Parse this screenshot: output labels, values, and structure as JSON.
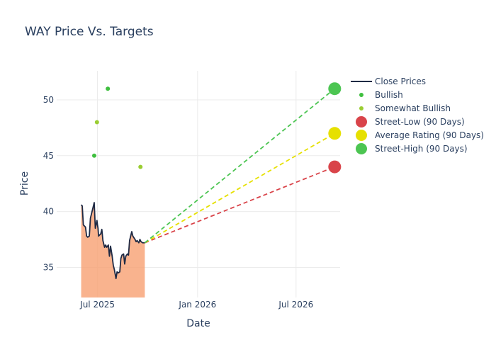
{
  "chart_data": {
    "type": "line",
    "title": "WAY Price Vs. Targets",
    "xlabel": "Date",
    "ylabel": "Price",
    "x_ticks": [
      "Jul 2025",
      "Jan 2026",
      "Jul 2026"
    ],
    "y_ticks": [
      35,
      40,
      45,
      50
    ],
    "ylim": [
      32.3,
      52.6
    ],
    "xlim": [
      "2025-04-17",
      "2026-09-20"
    ],
    "grid": true,
    "legend_position": "top-right",
    "colors": {
      "close": "#1f2a44",
      "area": "#f7a072",
      "bullish": "#3fbf3f",
      "somewhat_bullish": "#9acd32",
      "street_low": "#d9444a",
      "average": "#e6e000",
      "street_high": "#4cc552",
      "grid": "#ebebeb",
      "text": "#2a3f5f"
    },
    "series": [
      {
        "name": "Close Prices",
        "x": [
          "2025-06-01",
          "2025-06-03",
          "2025-06-05",
          "2025-06-09",
          "2025-06-11",
          "2025-06-13",
          "2025-06-16",
          "2025-06-18",
          "2025-06-20",
          "2025-06-23",
          "2025-06-25",
          "2025-06-27",
          "2025-06-30",
          "2025-07-01",
          "2025-07-02",
          "2025-07-03",
          "2025-07-07",
          "2025-07-09",
          "2025-07-11",
          "2025-07-14",
          "2025-07-16",
          "2025-07-18",
          "2025-07-21",
          "2025-07-23",
          "2025-07-25",
          "2025-07-28",
          "2025-07-30",
          "2025-08-01",
          "2025-08-04",
          "2025-08-06",
          "2025-08-08",
          "2025-08-11",
          "2025-08-13",
          "2025-08-15",
          "2025-08-18",
          "2025-08-20",
          "2025-08-22",
          "2025-08-25",
          "2025-08-27",
          "2025-08-29",
          "2025-09-02",
          "2025-09-04",
          "2025-09-08",
          "2025-09-10",
          "2025-09-12",
          "2025-09-15",
          "2025-09-17",
          "2025-09-19",
          "2025-09-22",
          "2025-09-24",
          "2025-09-26"
        ],
        "y": [
          40.6,
          40.5,
          38.8,
          38.6,
          37.8,
          37.7,
          37.8,
          39.4,
          39.8,
          40.4,
          40.8,
          38.5,
          39.2,
          38.8,
          38.5,
          37.8,
          38.0,
          38.4,
          37.4,
          36.8,
          37.0,
          36.8,
          37.0,
          36.0,
          36.9,
          36.0,
          35.2,
          34.8,
          34.0,
          34.6,
          34.5,
          34.6,
          35.8,
          36.1,
          36.2,
          35.3,
          36.0,
          36.2,
          36.1,
          37.4,
          38.2,
          37.8,
          37.5,
          37.3,
          37.4,
          37.2,
          37.5,
          37.3,
          37.2,
          37.2,
          37.2
        ]
      },
      {
        "name": "Bullish",
        "points": [
          {
            "x": "2025-06-25",
            "y": 45
          },
          {
            "x": "2025-07-20",
            "y": 51
          }
        ]
      },
      {
        "name": "Somewhat Bullish",
        "points": [
          {
            "x": "2025-06-30",
            "y": 48
          },
          {
            "x": "2025-09-18",
            "y": 44
          }
        ]
      },
      {
        "name": "Street-Low (90 Days)",
        "points": [
          {
            "x": "2025-09-26",
            "y": 37.2
          },
          {
            "x": "2026-09-10",
            "y": 44
          }
        ]
      },
      {
        "name": "Average Rating (90 Days)",
        "points": [
          {
            "x": "2025-09-26",
            "y": 37.2
          },
          {
            "x": "2026-09-10",
            "y": 47
          }
        ]
      },
      {
        "name": "Street-High (90 Days)",
        "points": [
          {
            "x": "2025-09-26",
            "y": 37.2
          },
          {
            "x": "2026-09-10",
            "y": 51
          }
        ]
      }
    ]
  }
}
